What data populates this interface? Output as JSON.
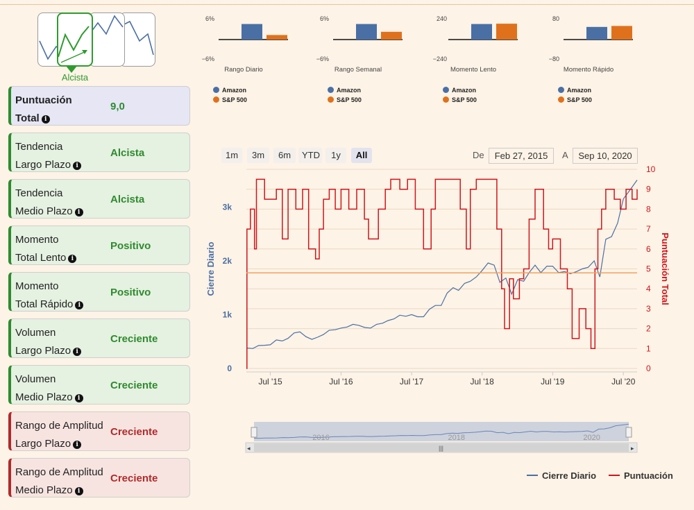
{
  "trend": {
    "label": "Alcista",
    "color": "#2e9b2e"
  },
  "cards": [
    {
      "name1": "Puntuación",
      "name2": "Total",
      "value": "9,0",
      "style": "blue"
    },
    {
      "name1": "Tendencia",
      "name2": "Largo Plazo",
      "value": "Alcista",
      "style": "green"
    },
    {
      "name1": "Tendencia",
      "name2": "Medio Plazo",
      "value": "Alcista",
      "style": "green"
    },
    {
      "name1": "Momento",
      "name2": "Total Lento",
      "value": "Positivo",
      "style": "green"
    },
    {
      "name1": "Momento",
      "name2": "Total Rápido",
      "value": "Positivo",
      "style": "green"
    },
    {
      "name1": "Volumen",
      "name2": "Largo Plazo",
      "value": "Creciente",
      "style": "green"
    },
    {
      "name1": "Volumen",
      "name2": "Medio Plazo",
      "value": "Creciente",
      "style": "green"
    },
    {
      "name1": "Rango de Amplitud",
      "name2": "Largo Plazo",
      "value": "Creciente",
      "style": "red"
    },
    {
      "name1": "Rango de Amplitud",
      "name2": "Medio Plazo",
      "value": "Creciente",
      "style": "red"
    }
  ],
  "colors": {
    "amazon": "#4a6fa5",
    "sp500": "#e0711c",
    "score": "#d0141c",
    "threshold": "#f0a060"
  },
  "range_selector": {
    "buttons": [
      "1m",
      "3m",
      "6m",
      "YTD",
      "1y",
      "All"
    ],
    "active": "All",
    "from_label": "De",
    "from_value": "Feb 27, 2015",
    "to_label": "A",
    "to_value": "Sep 10, 2020"
  },
  "navigator_labels": [
    "2016",
    "2018",
    "2020"
  ],
  "chart_data": [
    {
      "type": "bar",
      "title": "Rango Diario",
      "ylim": [
        -6,
        6
      ],
      "ytick_labels": [
        "6%",
        "−6%"
      ],
      "categories": [
        "Amazon",
        "S&P 500"
      ],
      "values": [
        4.8,
        1.4
      ]
    },
    {
      "type": "bar",
      "title": "Rango Semanal",
      "ylim": [
        -6,
        6
      ],
      "ytick_labels": [
        "6%",
        "−6%"
      ],
      "categories": [
        "Amazon",
        "S&P 500"
      ],
      "values": [
        4.8,
        2.4
      ]
    },
    {
      "type": "bar",
      "title": "Momento Lento",
      "ylim": [
        -240,
        240
      ],
      "ytick_labels": [
        "240",
        "−240"
      ],
      "categories": [
        "Amazon",
        "S&P 500"
      ],
      "values": [
        192,
        196
      ]
    },
    {
      "type": "bar",
      "title": "Momento Rápido",
      "ylim": [
        -80,
        80
      ],
      "ytick_labels": [
        "80",
        "−80"
      ],
      "categories": [
        "Amazon",
        "S&P 500"
      ],
      "values": [
        52,
        56
      ]
    },
    {
      "type": "line",
      "ylabel": "Cierre Diario",
      "y2label": "Puntuación Total",
      "ylim": [
        0,
        3700
      ],
      "y2lim": [
        0,
        10
      ],
      "yticks": [
        0,
        1000,
        2000,
        3000
      ],
      "ytick_labels": [
        "0",
        "1k",
        "2k",
        "3k"
      ],
      "y2ticks": [
        0,
        1,
        2,
        3,
        4,
        5,
        6,
        7,
        8,
        9,
        10
      ],
      "xlim": [
        "2015-02-27",
        "2020-09-10"
      ],
      "xtick_labels": [
        "Jul '15",
        "Jul '16",
        "Jul '17",
        "Jul '18",
        "Jul '19",
        "Jul '20"
      ],
      "xticks": [
        "2015-07-01",
        "2016-07-01",
        "2017-07-01",
        "2018-07-01",
        "2019-07-01",
        "2020-07-01"
      ],
      "threshold": 4.8,
      "series": [
        {
          "name": "Cierre Diario",
          "axis": "left",
          "points": [
            [
              "2015-02-27",
              380
            ],
            [
              "2015-04-01",
              370
            ],
            [
              "2015-05-01",
              425
            ],
            [
              "2015-06-01",
              430
            ],
            [
              "2015-07-01",
              440
            ],
            [
              "2015-08-01",
              530
            ],
            [
              "2015-09-01",
              510
            ],
            [
              "2015-10-01",
              560
            ],
            [
              "2015-11-01",
              660
            ],
            [
              "2015-12-01",
              680
            ],
            [
              "2016-01-01",
              590
            ],
            [
              "2016-02-01",
              540
            ],
            [
              "2016-03-01",
              580
            ],
            [
              "2016-04-01",
              630
            ],
            [
              "2016-05-01",
              710
            ],
            [
              "2016-06-01",
              720
            ],
            [
              "2016-07-01",
              750
            ],
            [
              "2016-08-01",
              770
            ],
            [
              "2016-09-01",
              820
            ],
            [
              "2016-10-01",
              800
            ],
            [
              "2016-11-01",
              760
            ],
            [
              "2016-12-01",
              750
            ],
            [
              "2017-01-01",
              820
            ],
            [
              "2017-02-01",
              840
            ],
            [
              "2017-03-01",
              890
            ],
            [
              "2017-04-01",
              920
            ],
            [
              "2017-05-01",
              990
            ],
            [
              "2017-06-01",
              970
            ],
            [
              "2017-07-01",
              1000
            ],
            [
              "2017-08-01",
              960
            ],
            [
              "2017-09-01",
              960
            ],
            [
              "2017-10-01",
              1100
            ],
            [
              "2017-11-01",
              1170
            ],
            [
              "2017-12-01",
              1170
            ],
            [
              "2018-01-01",
              1400
            ],
            [
              "2018-02-01",
              1500
            ],
            [
              "2018-03-01",
              1450
            ],
            [
              "2018-04-01",
              1580
            ],
            [
              "2018-05-01",
              1620
            ],
            [
              "2018-06-01",
              1700
            ],
            [
              "2018-07-01",
              1820
            ],
            [
              "2018-08-01",
              1960
            ],
            [
              "2018-09-01",
              1920
            ],
            [
              "2018-10-01",
              1600
            ],
            [
              "2018-11-01",
              1680
            ],
            [
              "2018-12-01",
              1380
            ],
            [
              "2019-01-01",
              1650
            ],
            [
              "2019-02-01",
              1620
            ],
            [
              "2019-03-01",
              1780
            ],
            [
              "2019-04-01",
              1920
            ],
            [
              "2019-05-01",
              1780
            ],
            [
              "2019-06-01",
              1900
            ],
            [
              "2019-07-01",
              1900
            ],
            [
              "2019-08-01",
              1780
            ],
            [
              "2019-09-01",
              1800
            ],
            [
              "2019-10-01",
              1760
            ],
            [
              "2019-11-01",
              1800
            ],
            [
              "2019-12-01",
              1850
            ],
            [
              "2020-01-01",
              1880
            ],
            [
              "2020-02-01",
              2000
            ],
            [
              "2020-03-01",
              1700
            ],
            [
              "2020-04-01",
              2400
            ],
            [
              "2020-05-01",
              2450
            ],
            [
              "2020-06-01",
              2700
            ],
            [
              "2020-07-01",
              3150
            ],
            [
              "2020-08-01",
              3300
            ],
            [
              "2020-09-10",
              3500
            ]
          ]
        },
        {
          "name": "Puntuación",
          "axis": "right",
          "points": [
            [
              "2015-02-27",
              0
            ],
            [
              "2015-03-02",
              7
            ],
            [
              "2015-03-20",
              8
            ],
            [
              "2015-04-10",
              6
            ],
            [
              "2015-04-20",
              9.5
            ],
            [
              "2015-06-01",
              8.5
            ],
            [
              "2015-08-01",
              9
            ],
            [
              "2015-09-01",
              6.5
            ],
            [
              "2015-10-01",
              9
            ],
            [
              "2015-11-10",
              8
            ],
            [
              "2015-12-15",
              9
            ],
            [
              "2016-01-15",
              6
            ],
            [
              "2016-02-20",
              5.5
            ],
            [
              "2016-03-10",
              7
            ],
            [
              "2016-04-01",
              8.5
            ],
            [
              "2016-05-01",
              9
            ],
            [
              "2016-06-01",
              8
            ],
            [
              "2016-07-01",
              9
            ],
            [
              "2016-08-10",
              8
            ],
            [
              "2016-09-20",
              9
            ],
            [
              "2016-10-30",
              7.5
            ],
            [
              "2016-11-20",
              6.5
            ],
            [
              "2017-01-10",
              8
            ],
            [
              "2017-02-15",
              9
            ],
            [
              "2017-03-15",
              9.5
            ],
            [
              "2017-05-01",
              9
            ],
            [
              "2017-06-10",
              9.5
            ],
            [
              "2017-07-20",
              8
            ],
            [
              "2017-09-01",
              6
            ],
            [
              "2017-10-10",
              8
            ],
            [
              "2017-11-01",
              9.5
            ],
            [
              "2018-01-01",
              9.5
            ],
            [
              "2018-03-10",
              8
            ],
            [
              "2018-04-10",
              6
            ],
            [
              "2018-05-01",
              9
            ],
            [
              "2018-06-01",
              9.5
            ],
            [
              "2018-08-01",
              9.5
            ],
            [
              "2018-09-15",
              7
            ],
            [
              "2018-10-10",
              4
            ],
            [
              "2018-10-25",
              2
            ],
            [
              "2018-11-20",
              4.5
            ],
            [
              "2018-12-10",
              3.5
            ],
            [
              "2019-01-10",
              4.5
            ],
            [
              "2019-02-01",
              5
            ],
            [
              "2019-03-01",
              7.5
            ],
            [
              "2019-04-01",
              9
            ],
            [
              "2019-05-15",
              7
            ],
            [
              "2019-06-10",
              6
            ],
            [
              "2019-07-01",
              6.5
            ],
            [
              "2019-08-10",
              5
            ],
            [
              "2019-09-15",
              4
            ],
            [
              "2019-10-10",
              1.5
            ],
            [
              "2019-11-15",
              3
            ],
            [
              "2019-12-20",
              2
            ],
            [
              "2020-01-15",
              1
            ],
            [
              "2020-02-05",
              5
            ],
            [
              "2020-02-20",
              7
            ],
            [
              "2020-03-10",
              8
            ],
            [
              "2020-04-01",
              9
            ],
            [
              "2020-05-15",
              8.5
            ],
            [
              "2020-06-15",
              8
            ],
            [
              "2020-07-15",
              9
            ],
            [
              "2020-08-15",
              8.5
            ],
            [
              "2020-09-10",
              9
            ]
          ]
        }
      ]
    }
  ]
}
